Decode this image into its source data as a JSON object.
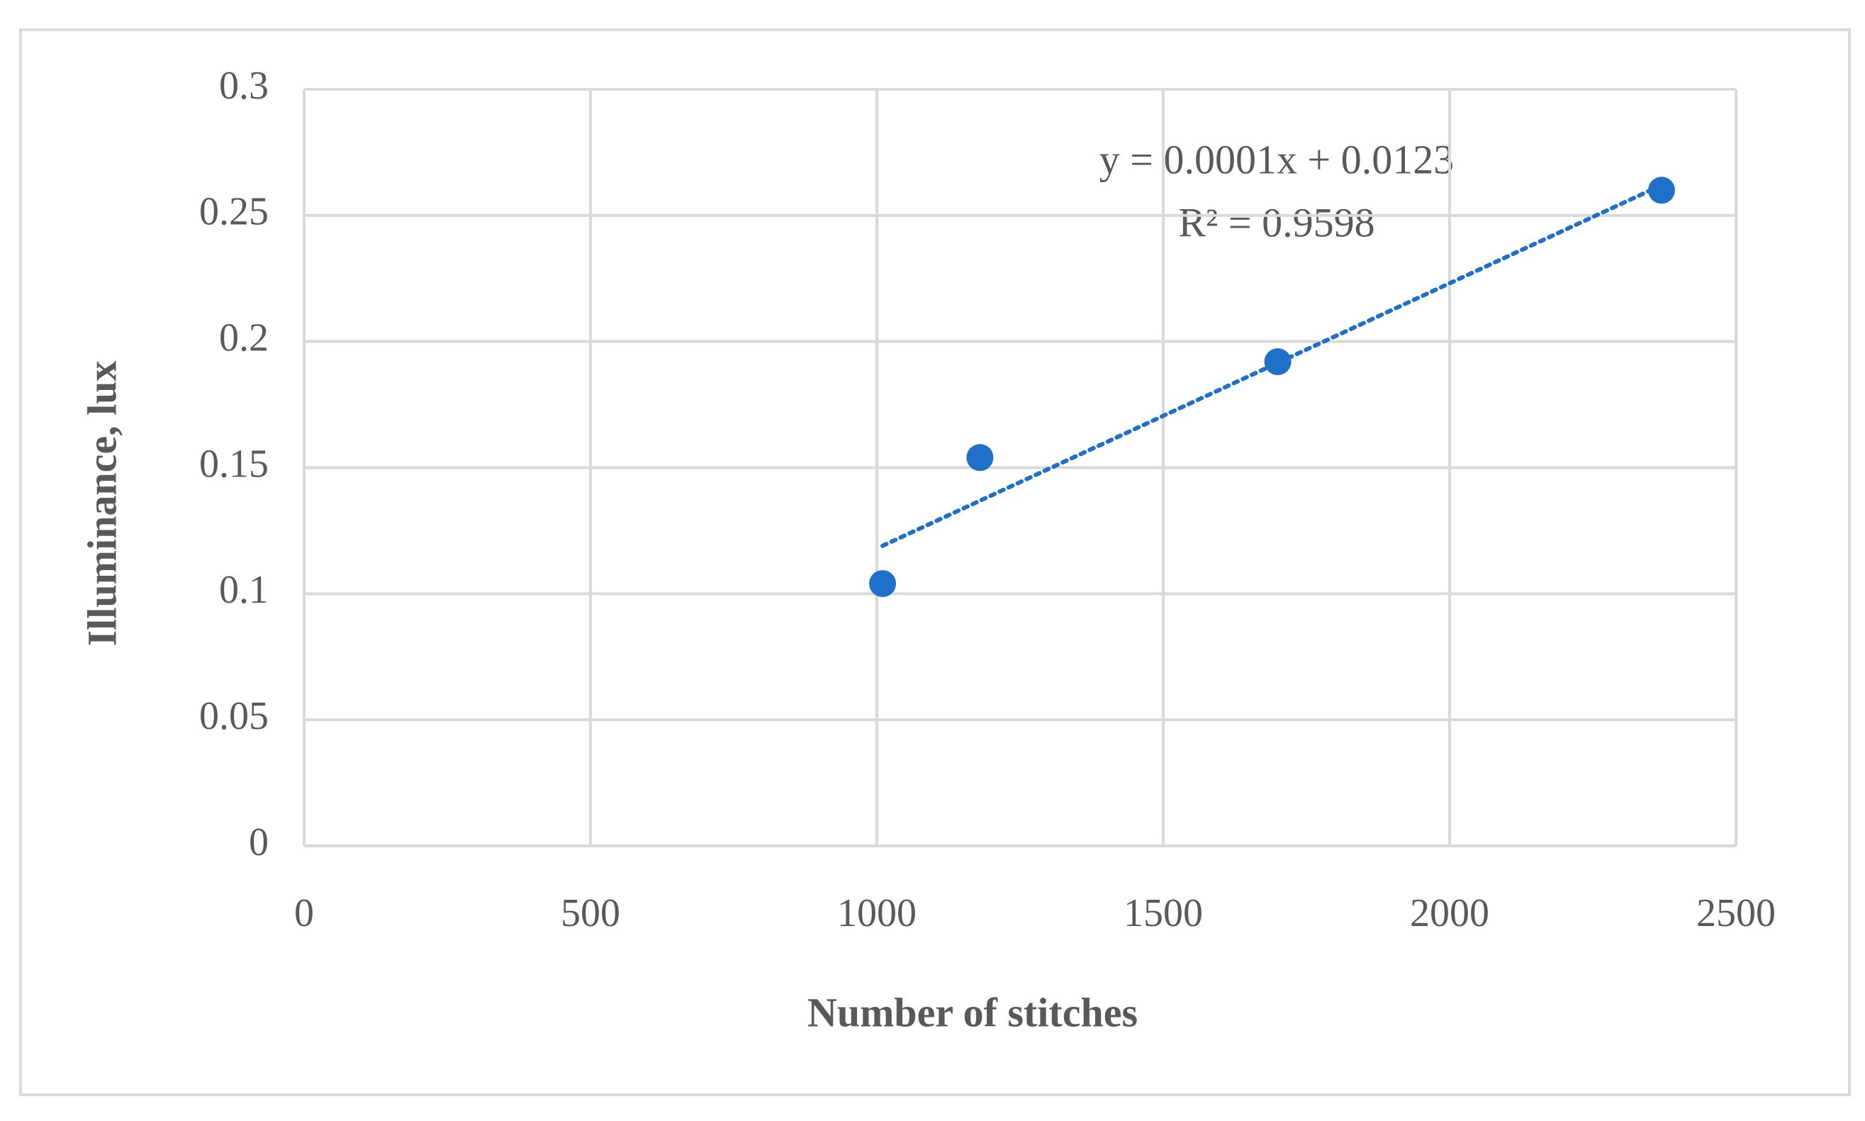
{
  "chart_data": {
    "type": "scatter",
    "x_label": "Number of stitches",
    "y_label": "Illuminance, lux",
    "series": [
      {
        "name": "Illuminance",
        "color": "#1f70c8",
        "x": [
          1010,
          1180,
          1700,
          2370
        ],
        "values": [
          0.104,
          0.154,
          0.192,
          0.26
        ]
      }
    ],
    "trendline": {
      "color": "#1f70c8",
      "x": [
        1010,
        2370
      ],
      "values": [
        0.119,
        0.262
      ]
    },
    "annotations": [
      "y = 0.0001x + 0.0123",
      "R² = 0.9598"
    ],
    "xlim": [
      0,
      2500
    ],
    "xticks": [
      0,
      500,
      1000,
      1500,
      2000,
      2500
    ],
    "ylim": [
      0,
      0.3
    ],
    "yticks": [
      0,
      0.05,
      0.1,
      0.15,
      0.2,
      0.25,
      0.3
    ],
    "grid": true
  }
}
